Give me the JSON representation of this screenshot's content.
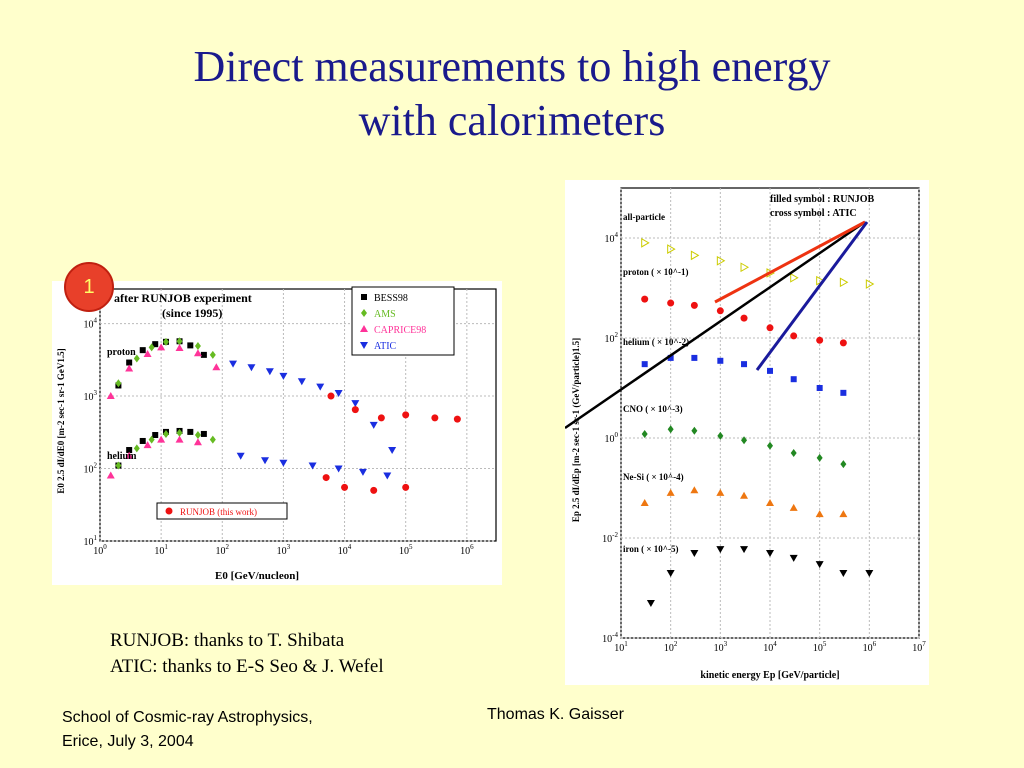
{
  "slide": {
    "title_line1": "Direct measurements to high energy",
    "title_line2": "with calorimeters",
    "badge": "1",
    "credit_line1": "RUNJOB: thanks to T. Shibata",
    "credit_line2": "ATIC: thanks to E-S Seo & J. Wefel",
    "footer_left_line1": "School of Cosmic-ray Astrophysics,",
    "footer_left_line2": "Erice, July 3, 2004",
    "footer_center": "Thomas K. Gaisser"
  },
  "colors": {
    "title": "#1a1a8c",
    "background": "#ffffcc"
  },
  "chart_data": [
    {
      "type": "scatter",
      "title": "after RUNJOB experiment",
      "subtitle": "(since 1995)",
      "xlabel": "E0 [GeV/nucleon]",
      "ylabel": "E0 2.5 dI/dE0 [m-2 sec-1 sr-1 GeV1.5]",
      "xscale": "log",
      "yscale": "log",
      "xlim": [
        1,
        3000000
      ],
      "ylim": [
        10,
        30000
      ],
      "x_ticks": [
        "10^0",
        "10^1",
        "10^2",
        "10^3",
        "10^4",
        "10^5",
        "10^6"
      ],
      "y_ticks": [
        "10^1",
        "10^2",
        "10^3",
        "10^4"
      ],
      "legend": [
        "BESS98",
        "AMS",
        "CAPRICE98",
        "ATIC"
      ],
      "legend2": "RUNJOB (this work)",
      "annotations": [
        "proton",
        "helium"
      ],
      "series": [
        {
          "name": "BESS98",
          "color": "#000000",
          "marker": "square",
          "x": [
            2,
            3,
            5,
            8,
            12,
            20,
            30,
            50
          ],
          "y": [
            1400,
            2900,
            4300,
            5200,
            5600,
            5700,
            5000,
            3700
          ]
        },
        {
          "name": "AMS",
          "color": "#66bb22",
          "marker": "diamond",
          "x": [
            2,
            4,
            7,
            12,
            20,
            40,
            70
          ],
          "y": [
            1500,
            3300,
            4700,
            5600,
            5700,
            4900,
            3700
          ]
        },
        {
          "name": "CAPRICE98",
          "color": "#ff3399",
          "marker": "triangle-up",
          "x": [
            1.5,
            3,
            6,
            10,
            20,
            40,
            80
          ],
          "y": [
            1000,
            2400,
            3800,
            4700,
            4600,
            3900,
            2500
          ]
        },
        {
          "name": "ATIC",
          "color": "#1a2ee0",
          "marker": "triangle-down",
          "x": [
            150,
            300,
            600,
            1000,
            2000,
            4000,
            8000,
            15000,
            30000,
            60000
          ],
          "y": [
            2800,
            2500,
            2200,
            1900,
            1600,
            1350,
            1100,
            800,
            400,
            180
          ]
        },
        {
          "name": "RUNJOB (this work)",
          "color": "#ee1111",
          "marker": "circle",
          "x": [
            6000,
            15000,
            40000,
            100000,
            300000,
            700000
          ],
          "y": [
            1000,
            650,
            500,
            550,
            500,
            480
          ]
        },
        {
          "name": "BESS98",
          "color": "#000000",
          "marker": "square",
          "x": [
            2,
            3,
            5,
            8,
            12,
            20,
            30,
            50
          ],
          "y": [
            110,
            180,
            240,
            290,
            320,
            330,
            320,
            300
          ]
        },
        {
          "name": "AMS",
          "color": "#66bb22",
          "marker": "diamond",
          "x": [
            2,
            4,
            7,
            12,
            20,
            40,
            70
          ],
          "y": [
            110,
            190,
            250,
            300,
            310,
            290,
            250
          ]
        },
        {
          "name": "CAPRICE98",
          "color": "#ff3399",
          "marker": "triangle-up",
          "x": [
            1.5,
            3,
            6,
            10,
            20,
            40
          ],
          "y": [
            80,
            150,
            210,
            250,
            250,
            230
          ]
        },
        {
          "name": "ATIC",
          "color": "#1a2ee0",
          "marker": "triangle-down",
          "x": [
            200,
            500,
            1000,
            3000,
            8000,
            20000,
            50000
          ],
          "y": [
            150,
            130,
            120,
            110,
            100,
            90,
            80
          ]
        },
        {
          "name": "RUNJOB (this work)",
          "color": "#ee1111",
          "marker": "circle",
          "x": [
            5000,
            10000,
            30000,
            100000
          ],
          "y": [
            75,
            55,
            50,
            55
          ]
        }
      ]
    },
    {
      "type": "scatter",
      "xlabel": "kinetic energy Ep [GeV/particle]",
      "ylabel": "Ep 2.5 dI/dEp [m-2 sec-1 sr-1 (GeV/particle)1.5]",
      "xscale": "log",
      "yscale": "log",
      "xlim": [
        10,
        10000000
      ],
      "ylim": [
        0.0001,
        100000
      ],
      "x_ticks": [
        "10^1",
        "10^2",
        "10^3",
        "10^4",
        "10^5",
        "10^6",
        "10^7"
      ],
      "y_ticks": [
        "10^-4",
        "10^-2",
        "10^0",
        "10^2",
        "10^4"
      ],
      "legend": [
        "filled symbol : RUNJOB",
        "cross symbol : ATIC"
      ],
      "annotations": [
        "all-particle",
        "proton ( × 10^-1)",
        "helium ( × 10^-2)",
        "CNO ( × 10^-3)",
        "Ne-Si ( × 10^-4)",
        "iron ( × 10^-5)"
      ],
      "series": [
        {
          "name": "all-particle",
          "color": "#cccc00",
          "marker": "triangle-right",
          "x": [
            30,
            100,
            300,
            1000,
            3000,
            10000,
            30000,
            100000,
            300000,
            1000000
          ],
          "y": [
            8000,
            6000,
            4500,
            3500,
            2600,
            2000,
            1600,
            1400,
            1300,
            1200
          ]
        },
        {
          "name": "proton ( × 10^-1)",
          "color": "#ee1111",
          "marker": "circle",
          "x": [
            30,
            100,
            300,
            1000,
            3000,
            10000,
            30000,
            100000,
            300000
          ],
          "y": [
            600,
            500,
            450,
            350,
            250,
            160,
            110,
            90,
            80
          ]
        },
        {
          "name": "helium ( × 10^-2)",
          "color": "#1a2ee0",
          "marker": "square",
          "x": [
            30,
            100,
            300,
            1000,
            3000,
            10000,
            30000,
            100000,
            300000
          ],
          "y": [
            30,
            40,
            40,
            35,
            30,
            22,
            15,
            10,
            8
          ]
        },
        {
          "name": "CNO ( × 10^-3)",
          "color": "#228822",
          "marker": "diamond",
          "x": [
            30,
            100,
            300,
            1000,
            3000,
            10000,
            30000,
            100000,
            300000
          ],
          "y": [
            1.2,
            1.5,
            1.4,
            1.1,
            0.9,
            0.7,
            0.5,
            0.4,
            0.3
          ]
        },
        {
          "name": "Ne-Si ( × 10^-4)",
          "color": "#ee7711",
          "marker": "triangle-up",
          "x": [
            30,
            100,
            300,
            1000,
            3000,
            10000,
            30000,
            100000,
            300000
          ],
          "y": [
            0.05,
            0.08,
            0.09,
            0.08,
            0.07,
            0.05,
            0.04,
            0.03,
            0.03
          ]
        },
        {
          "name": "iron ( × 10^-5)",
          "color": "#000000",
          "marker": "triangle-down",
          "x": [
            40,
            100,
            300,
            1000,
            3000,
            10000,
            30000,
            100000,
            300000,
            1000000
          ],
          "y": [
            0.0005,
            0.002,
            0.005,
            0.006,
            0.006,
            0.005,
            0.004,
            0.003,
            0.002,
            0.002
          ]
        }
      ]
    }
  ]
}
